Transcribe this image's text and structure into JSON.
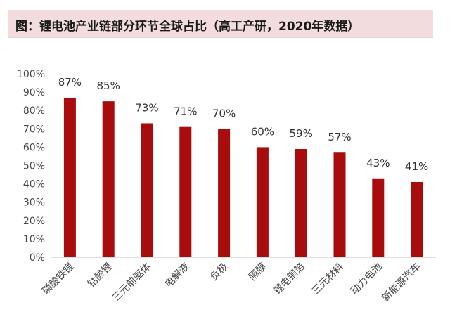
{
  "header": {
    "title": "图：锂电池产业链部分环节全球占比（高工产研，2020年数据）"
  },
  "colors": {
    "bar": "#a80c0c",
    "title_background": "#f3dcdd",
    "axis": "#bfbfbf"
  },
  "chart_data": {
    "type": "bar",
    "title": "图：锂电池产业链部分环节全球占比（高工产研，2020年数据）",
    "xlabel": "",
    "ylabel": "",
    "ylim": [
      0,
      100
    ],
    "y_ticks": [
      "0%",
      "10%",
      "20%",
      "30%",
      "40%",
      "50%",
      "60%",
      "70%",
      "80%",
      "90%",
      "100%"
    ],
    "categories": [
      "磷酸铁锂",
      "钴酸锂",
      "三元前驱体",
      "电解液",
      "负极",
      "隔膜",
      "锂电铜箔",
      "三元材料",
      "动力电池",
      "新能源汽车"
    ],
    "values": [
      87,
      85,
      73,
      71,
      70,
      60,
      59,
      57,
      43,
      41
    ],
    "data_labels": [
      "87%",
      "85%",
      "73%",
      "71%",
      "70%",
      "60%",
      "59%",
      "57%",
      "43%",
      "41%"
    ],
    "grid": false,
    "legend": "none"
  }
}
